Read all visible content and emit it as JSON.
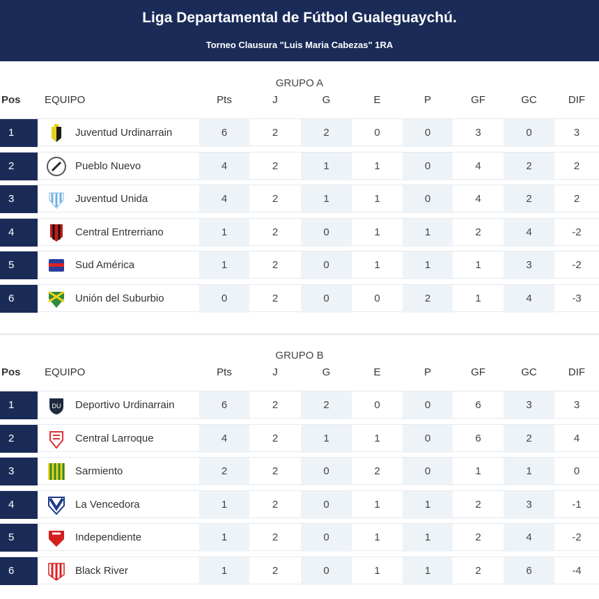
{
  "header": {
    "title": "Liga Departamental de Fútbol Gualeguaychú.",
    "subtitle": "Torneo Clausura \"Luis Maria Cabezas\" 1RA"
  },
  "columns": [
    "Pos",
    "EQUIPO",
    "Pts",
    "J",
    "G",
    "E",
    "P",
    "GF",
    "GC",
    "DIF"
  ],
  "groups": [
    {
      "title": "GRUPO A",
      "rows": [
        {
          "pos": "1",
          "team": "Juventud Urdinarrain",
          "crest": "yellow-black-shield",
          "stats": [
            "6",
            "2",
            "2",
            "0",
            "0",
            "3",
            "0",
            "3"
          ]
        },
        {
          "pos": "2",
          "team": "Pueblo Nuevo",
          "crest": "white-round-laurel",
          "stats": [
            "4",
            "2",
            "1",
            "1",
            "0",
            "4",
            "2",
            "2"
          ]
        },
        {
          "pos": "3",
          "team": "Juventud Unida",
          "crest": "skyblue-white-shield",
          "stats": [
            "4",
            "2",
            "1",
            "1",
            "0",
            "4",
            "2",
            "2"
          ]
        },
        {
          "pos": "4",
          "team": "Central Entrerriano",
          "crest": "red-black-shield",
          "stats": [
            "1",
            "2",
            "0",
            "1",
            "1",
            "2",
            "4",
            "-2"
          ]
        },
        {
          "pos": "5",
          "team": "Sud América",
          "crest": "blue-red-shield",
          "stats": [
            "1",
            "2",
            "0",
            "1",
            "1",
            "1",
            "3",
            "-2"
          ]
        },
        {
          "pos": "6",
          "team": "Unión del Suburbio",
          "crest": "green-yellow-shield",
          "stats": [
            "0",
            "2",
            "0",
            "0",
            "2",
            "1",
            "4",
            "-3"
          ]
        }
      ]
    },
    {
      "title": "GRUPO B",
      "rows": [
        {
          "pos": "1",
          "team": "Deportivo Urdinarrain",
          "crest": "navy-round-crest",
          "stats": [
            "6",
            "2",
            "2",
            "0",
            "0",
            "6",
            "3",
            "3"
          ]
        },
        {
          "pos": "2",
          "team": "Central Larroque",
          "crest": "red-white-shield",
          "stats": [
            "4",
            "2",
            "1",
            "1",
            "0",
            "6",
            "2",
            "4"
          ]
        },
        {
          "pos": "3",
          "team": "Sarmiento",
          "crest": "green-yellow-stripes",
          "stats": [
            "2",
            "2",
            "0",
            "2",
            "0",
            "1",
            "1",
            "0"
          ]
        },
        {
          "pos": "4",
          "team": "La Vencedora",
          "crest": "blue-white-v-shield",
          "stats": [
            "1",
            "2",
            "0",
            "1",
            "1",
            "2",
            "3",
            "-1"
          ]
        },
        {
          "pos": "5",
          "team": "Independiente",
          "crest": "red-shield",
          "stats": [
            "1",
            "2",
            "0",
            "1",
            "1",
            "2",
            "4",
            "-2"
          ]
        },
        {
          "pos": "6",
          "team": "Black River",
          "crest": "red-white-stripes",
          "stats": [
            "1",
            "2",
            "0",
            "1",
            "1",
            "2",
            "6",
            "-4"
          ]
        }
      ]
    }
  ],
  "colors": {
    "navy": "#1b2b58",
    "shade": "#eef3f8"
  }
}
